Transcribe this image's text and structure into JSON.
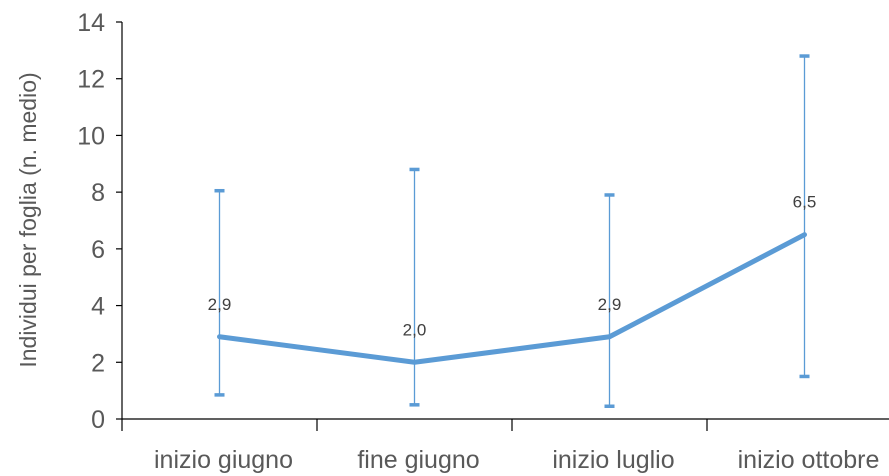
{
  "chart_data": {
    "type": "line",
    "title": "",
    "xlabel": "",
    "ylabel": "Individui per foglia (n. medio)",
    "categories": [
      "inizio giugno",
      "fine giugno",
      "inizio luglio",
      "inizio ottobre"
    ],
    "series": [
      {
        "values": [
          2.9,
          2.0,
          2.9,
          6.5
        ],
        "data_labels": [
          "2,9",
          "2,0",
          "2,9",
          "6,5"
        ],
        "error_low": [
          0.85,
          0.5,
          0.45,
          1.5
        ],
        "error_high": [
          8.05,
          8.8,
          7.9,
          12.8
        ],
        "color": "#5B9BD5"
      }
    ],
    "ylim": [
      0,
      14
    ],
    "yticks": [
      0,
      2,
      4,
      6,
      8,
      10,
      12,
      14
    ],
    "grid": false,
    "legend": "none",
    "colors": {
      "line": "#5B9BD5",
      "axis": "#000000",
      "text": "#595959"
    }
  }
}
